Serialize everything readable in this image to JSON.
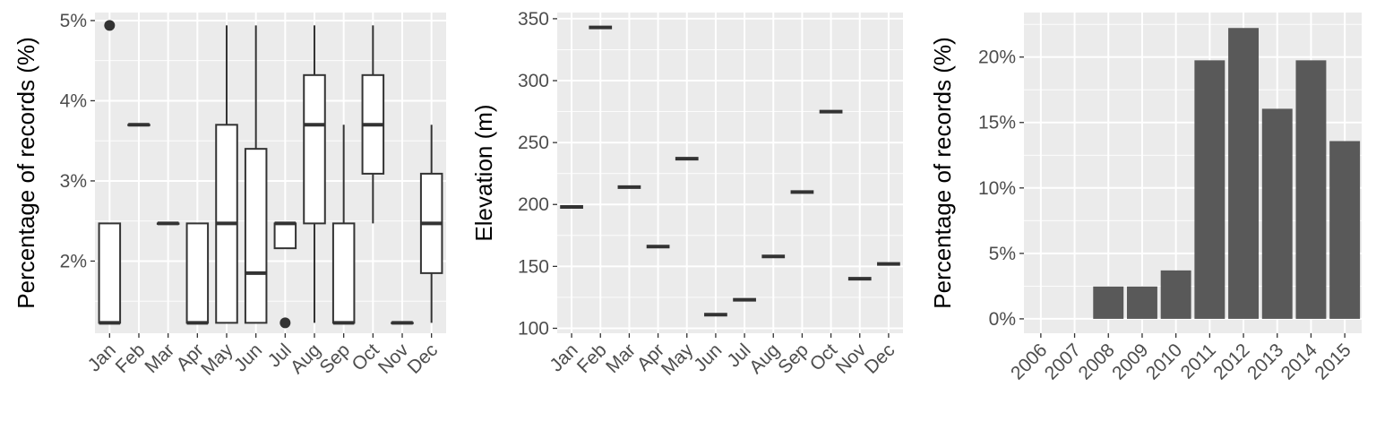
{
  "chart_data": [
    {
      "type": "box",
      "title": "",
      "xlabel": "",
      "ylabel": "Percentage of records (%)",
      "ylim": [
        1.1,
        5.1
      ],
      "yticks": [
        2,
        3,
        4,
        5
      ],
      "ytick_labels": [
        "2%",
        "3%",
        "4%",
        "5%"
      ],
      "categories": [
        "Jan",
        "Feb",
        "Mar",
        "Apr",
        "May",
        "Jun",
        "Jul",
        "Aug",
        "Sep",
        "Oct",
        "Nov",
        "Dec"
      ],
      "boxes": [
        {
          "q1": 1.23,
          "median": 1.23,
          "q3": 2.47,
          "lower": 1.23,
          "upper": 2.47,
          "outliers": [
            4.94
          ]
        },
        {
          "q1": 3.7,
          "median": 3.7,
          "q3": 3.7,
          "lower": 3.7,
          "upper": 3.7,
          "outliers": []
        },
        {
          "q1": 2.47,
          "median": 2.47,
          "q3": 2.47,
          "lower": 2.47,
          "upper": 2.47,
          "outliers": []
        },
        {
          "q1": 1.23,
          "median": 1.23,
          "q3": 2.47,
          "lower": 1.23,
          "upper": 2.47,
          "outliers": []
        },
        {
          "q1": 1.23,
          "median": 2.47,
          "q3": 3.7,
          "lower": 1.23,
          "upper": 4.94,
          "outliers": []
        },
        {
          "q1": 1.23,
          "median": 1.85,
          "q3": 3.4,
          "lower": 1.23,
          "upper": 4.94,
          "outliers": []
        },
        {
          "q1": 2.16,
          "median": 2.47,
          "q3": 2.47,
          "lower": 2.16,
          "upper": 2.47,
          "outliers": [
            1.23
          ]
        },
        {
          "q1": 2.47,
          "median": 3.7,
          "q3": 4.32,
          "lower": 1.23,
          "upper": 4.94,
          "outliers": []
        },
        {
          "q1": 1.23,
          "median": 1.23,
          "q3": 2.47,
          "lower": 1.23,
          "upper": 3.7,
          "outliers": []
        },
        {
          "q1": 3.09,
          "median": 3.7,
          "q3": 4.32,
          "lower": 2.47,
          "upper": 4.94,
          "outliers": []
        },
        {
          "q1": 1.23,
          "median": 1.23,
          "q3": 1.23,
          "lower": 1.23,
          "upper": 1.23,
          "outliers": []
        },
        {
          "q1": 1.85,
          "median": 2.47,
          "q3": 3.09,
          "lower": 1.23,
          "upper": 3.7,
          "outliers": []
        }
      ]
    },
    {
      "type": "box",
      "title": "",
      "xlabel": "",
      "ylabel": "Elevation (m)",
      "ylim": [
        96,
        355
      ],
      "yticks": [
        100,
        150,
        200,
        250,
        300,
        350
      ],
      "ytick_labels": [
        "100",
        "150",
        "200",
        "250",
        "300",
        "350"
      ],
      "categories": [
        "Jan",
        "Feb",
        "Mar",
        "Apr",
        "May",
        "Jun",
        "Jul",
        "Aug",
        "Sep",
        "Oct",
        "Nov",
        "Dec"
      ],
      "values": [
        198,
        343,
        214,
        166,
        237,
        111,
        123,
        158,
        210,
        275,
        140,
        152
      ]
    },
    {
      "type": "bar",
      "title": "",
      "xlabel": "",
      "ylabel": "Percentage of records (%)",
      "ylim": [
        -1.1,
        23.4
      ],
      "yticks": [
        0,
        5,
        10,
        15,
        20
      ],
      "ytick_labels": [
        "0%",
        "5%",
        "10%",
        "15%",
        "20%"
      ],
      "categories": [
        "2006",
        "2007",
        "2008",
        "2009",
        "2010",
        "2011",
        "2012",
        "2013",
        "2014",
        "2015"
      ],
      "values": [
        0,
        0,
        2.47,
        2.47,
        3.7,
        19.75,
        22.22,
        16.05,
        19.75,
        13.58
      ],
      "bar_color": "#595959"
    }
  ]
}
